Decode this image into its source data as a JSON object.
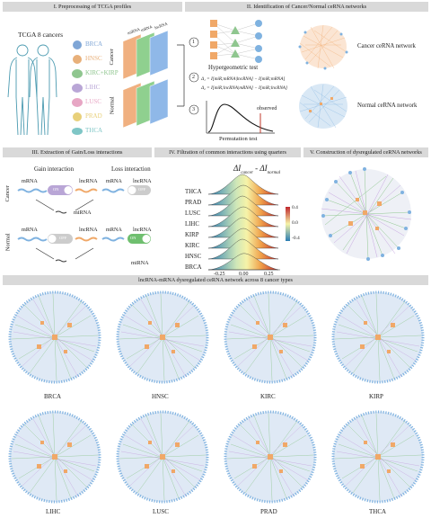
{
  "figure": {
    "sections": {
      "s1": "I. Preprocessing of TCGA profiles",
      "s2": "II. Identification of Cancer/Normal ceRNA networks",
      "s3": "III. Extraction of Gain/Loss interactions",
      "s4": "IV. Filtration of common interactions using quarters",
      "s5": "V. Construction of dysregulated ceRNA networks",
      "s6": "lncRNA-mRNA dysregulated ceRNA network across 8 cancer types"
    },
    "panel1": {
      "cohort": "TCGA 8 cancers",
      "cancers": [
        {
          "name": "BRCA",
          "color": "#7fa6d6"
        },
        {
          "name": "HNSC",
          "color": "#e8b07a"
        },
        {
          "name": "KIRC+KIRP",
          "color": "#8fc68f"
        },
        {
          "name": "LIHC",
          "color": "#b9a6d6"
        },
        {
          "name": "LUSC",
          "color": "#e7a6c4"
        },
        {
          "name": "PRAD",
          "color": "#e8d07a"
        },
        {
          "name": "THCA",
          "color": "#7fc6c6"
        }
      ],
      "matrix_labels": [
        "miRNA",
        "mRNA",
        "lncRNA"
      ],
      "cancer_side": "Cancer",
      "normal_side": "Normal"
    },
    "panel2": {
      "steps": [
        "1",
        "2",
        "3"
      ],
      "hypergeometric": "Hypergeometric test",
      "eq1": "Δ₁ = I[miR;mRNA|lncRNA] − I[miR;mRNA]",
      "eq2": "Δ₂ = I[miR;lncRNA|mRNA] − I[miR;lncRNA]",
      "permutation": "Permutation test",
      "observed": "observed",
      "cancer_net": "Cancer ceRNA network",
      "normal_net": "Normal ceRNA network"
    },
    "panel3": {
      "gain": "Gain interaction",
      "loss": "Loss interaction",
      "cancer": "Cancer",
      "normal": "Normal",
      "mrna": "mRNA",
      "lncrna": "lncRNA",
      "mirna": "miRNA",
      "on": "ON",
      "off": "OFF"
    },
    "panel4": {
      "title_main": "ΔI",
      "title_sub1": "cancer",
      "title_mid": " - ΔI",
      "title_sub2": "normal",
      "rows": [
        "THCA",
        "PRAD",
        "LUSC",
        "LIHC",
        "KIRP",
        "KIRC",
        "HNSC",
        "BRCA"
      ],
      "xticks": [
        "-0.25",
        "0.00",
        "0.25"
      ],
      "colorbar": [
        "0.4",
        "0.0",
        "-0.4"
      ]
    },
    "networks": [
      "BRCA",
      "HNSC",
      "KIRC",
      "KIRP",
      "LIHC",
      "LUSC",
      "PRAD",
      "THCA"
    ],
    "colors": {
      "banner": "#d9d9d9",
      "lncrna_node": "#f0a868",
      "mrna_node": "#7fb2e0",
      "gain_edge": "#8fc68f",
      "loss_edge": "#c7a6e0",
      "cancer_matrix": "#f0b080",
      "normal_matrix": "#8fc6e8"
    }
  }
}
